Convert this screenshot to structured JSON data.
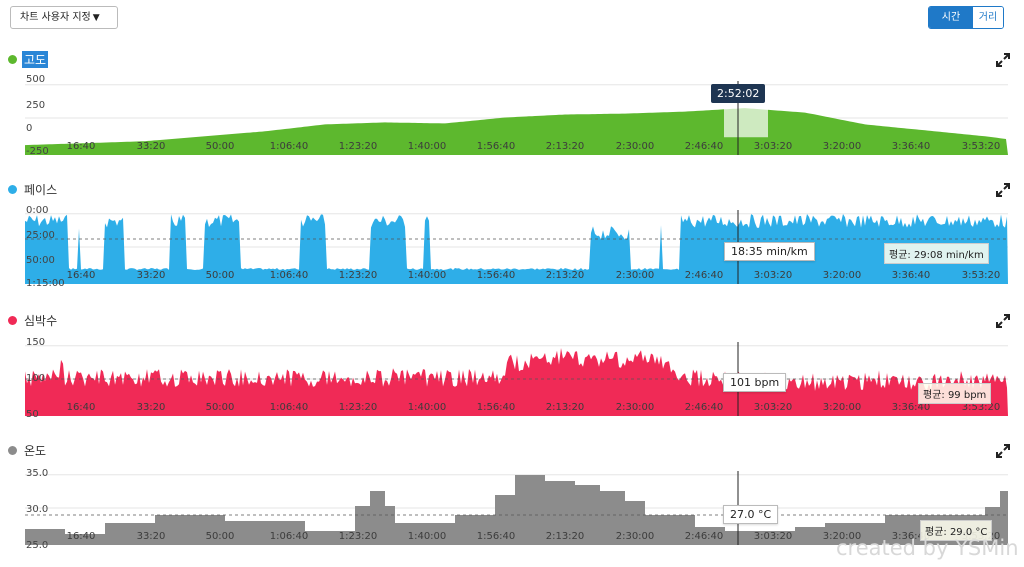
{
  "toolbar": {
    "customize_label": "차트 사용자 지정",
    "toggle_time": "시간",
    "toggle_distance": "거리"
  },
  "x_labels": [
    "16:40",
    "33:20",
    "50:00",
    "1:06:40",
    "1:23:20",
    "1:40:00",
    "1:56:40",
    "2:13:20",
    "2:30:00",
    "2:46:40",
    "3:03:20",
    "3:20:00",
    "3:36:40",
    "3:53:20"
  ],
  "cursor": {
    "time": "2:52:02"
  },
  "panels": [
    {
      "key": "elevation",
      "title": "고도",
      "color": "#5db82e",
      "selected": true,
      "y_ticks": [
        "500",
        "250",
        "0",
        "-250"
      ]
    },
    {
      "key": "pace",
      "title": "페이스",
      "color": "#2eaee8",
      "selected": false,
      "y_ticks": [
        "0:00",
        "25:00",
        "50:00",
        "1:15:00"
      ],
      "tooltip": "18:35 min/km",
      "average": "평균: 29:08 min/km"
    },
    {
      "key": "heartrate",
      "title": "심박수",
      "color": "#f02a56",
      "selected": false,
      "y_ticks": [
        "150",
        "100",
        "50"
      ],
      "tooltip": "101 bpm",
      "average": "평균: 99 bpm"
    },
    {
      "key": "temperature",
      "title": "온도",
      "color": "#8c8c8c",
      "selected": false,
      "y_ticks": [
        "35.0",
        "30.0",
        "25.0"
      ],
      "tooltip": "27.0 °C",
      "average": "평균: 29.0 °C"
    }
  ],
  "chart_data": [
    {
      "type": "area",
      "title": "고도",
      "ylim": [
        -250,
        500
      ],
      "ylabel": "",
      "x": [
        0,
        60,
        120,
        180,
        240,
        300,
        360,
        420,
        480,
        540,
        600,
        660,
        720,
        780,
        840,
        900,
        960,
        983
      ],
      "values": [
        -150,
        -130,
        -110,
        -60,
        -10,
        60,
        80,
        70,
        130,
        160,
        170,
        190,
        225,
        180,
        60,
        0,
        -60,
        -90
      ]
    },
    {
      "type": "area",
      "title": "페이스",
      "ylim": [
        0,
        75
      ],
      "average": 29.1,
      "note": "min/km, inverted axis"
    },
    {
      "type": "area",
      "title": "심박수",
      "ylim": [
        50,
        150
      ],
      "average": 99
    },
    {
      "type": "area",
      "title": "온도",
      "ylim": [
        25,
        35
      ],
      "average": 29.0
    }
  ],
  "watermark": "created by YSMin"
}
